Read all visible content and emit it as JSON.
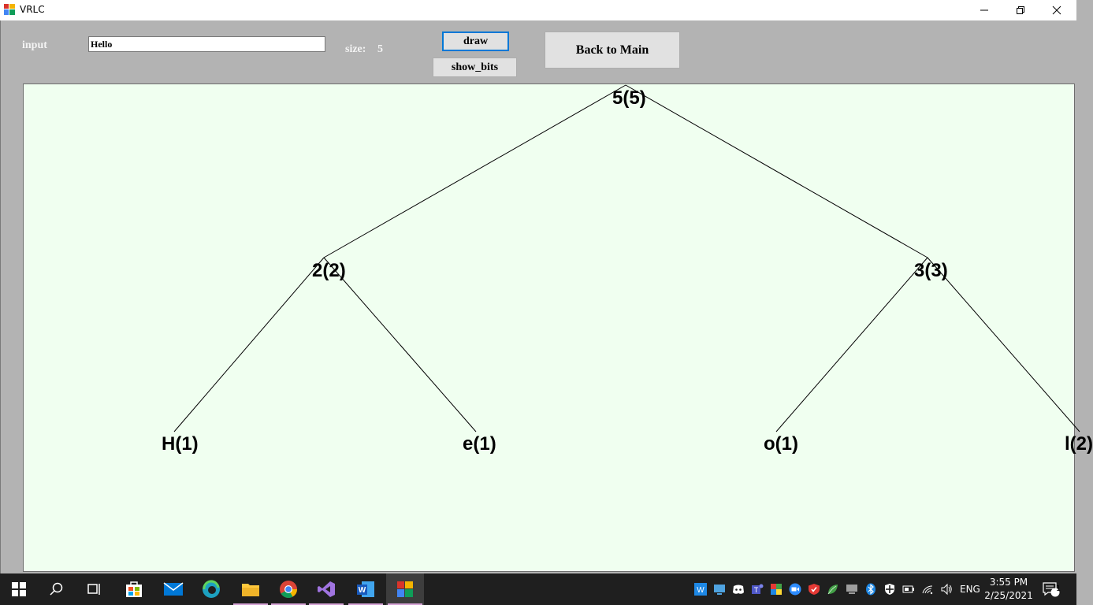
{
  "window": {
    "title": "VRLC"
  },
  "form": {
    "input_label": "input",
    "input_value": "Hello",
    "size_label": "size:",
    "size_value": "5",
    "draw_label": "draw",
    "show_bits_label": "show_bits",
    "back_label": "Back to Main"
  },
  "tree": {
    "root": "5(5)",
    "left": "2(2)",
    "right": "3(3)",
    "leaf_h": "H(1)",
    "leaf_e": "e(1)",
    "leaf_o": "o(1)",
    "leaf_l": "l(2)"
  },
  "taskbar": {
    "lang": "ENG",
    "time": "3:55 PM",
    "date": "2/25/2021",
    "notification_count": "1"
  },
  "colors": {
    "canvas_bg": "#f0fff0",
    "form_bg": "#b3b3b3",
    "accent": "#0078d7",
    "taskbar_bg": "#1f1f1f"
  }
}
